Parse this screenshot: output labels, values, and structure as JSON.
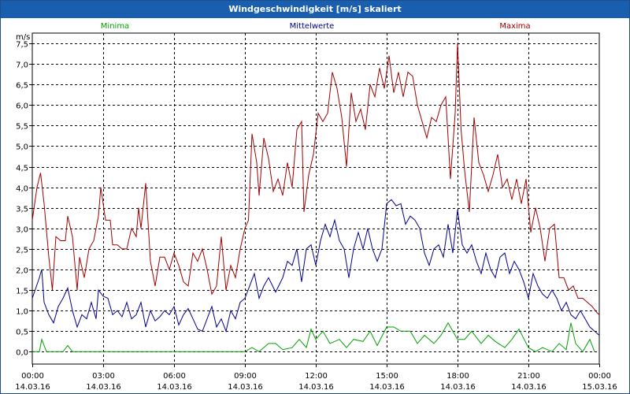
{
  "chart_data": {
    "type": "line",
    "title": "Windgeschwindigkeit [m/s] skaliert",
    "ylabel": "m/s",
    "ylim": [
      -0.3,
      7.75
    ],
    "y_ticks": [
      "0,0",
      "0,5",
      "1,0",
      "1,5",
      "2,0",
      "2,5",
      "3,0",
      "3,5",
      "4,0",
      "4,5",
      "5,0",
      "5,5",
      "6,0",
      "6,5",
      "7,0",
      "7,5"
    ],
    "y_tick_values": [
      0,
      0.5,
      1,
      1.5,
      2,
      2.5,
      3,
      3.5,
      4,
      4.5,
      5,
      5.5,
      6,
      6.5,
      7,
      7.5
    ],
    "x_range": [
      0,
      24
    ],
    "x_ticks": [
      {
        "time": "00:00",
        "date": "14.03.16",
        "hour": 0
      },
      {
        "time": "03:00",
        "date": "14.03.16",
        "hour": 3
      },
      {
        "time": "06:00",
        "date": "14.03.16",
        "hour": 6
      },
      {
        "time": "09:00",
        "date": "14.03.16",
        "hour": 9
      },
      {
        "time": "12:00",
        "date": "14.03.16",
        "hour": 12
      },
      {
        "time": "15:00",
        "date": "14.03.16",
        "hour": 15
      },
      {
        "time": "18:00",
        "date": "14.03.16",
        "hour": 18
      },
      {
        "time": "21:00",
        "date": "14.03.16",
        "hour": 21
      },
      {
        "time": "00:00",
        "date": "15.03.16",
        "hour": 24
      }
    ],
    "grid": true,
    "series": [
      {
        "name": "Minima",
        "color": "#00a000",
        "points": [
          [
            0,
            0
          ],
          [
            0.3,
            0
          ],
          [
            0.4,
            0.3
          ],
          [
            0.6,
            0
          ],
          [
            1.3,
            0
          ],
          [
            1.5,
            0.15
          ],
          [
            1.7,
            0
          ],
          [
            9.0,
            0
          ],
          [
            9.3,
            0.1
          ],
          [
            9.6,
            0
          ],
          [
            10.0,
            0.2
          ],
          [
            10.3,
            0.2
          ],
          [
            10.6,
            0.05
          ],
          [
            11.0,
            0.1
          ],
          [
            11.3,
            0.3
          ],
          [
            11.6,
            0.1
          ],
          [
            11.8,
            0.55
          ],
          [
            12.0,
            0.3
          ],
          [
            12.3,
            0.5
          ],
          [
            12.6,
            0.2
          ],
          [
            13.0,
            0.3
          ],
          [
            13.3,
            0.1
          ],
          [
            13.6,
            0.3
          ],
          [
            14.0,
            0.25
          ],
          [
            14.3,
            0.5
          ],
          [
            14.6,
            0.15
          ],
          [
            15.0,
            0.6
          ],
          [
            15.3,
            0.6
          ],
          [
            15.6,
            0.5
          ],
          [
            16.0,
            0.5
          ],
          [
            16.3,
            0.2
          ],
          [
            16.6,
            0.4
          ],
          [
            17.0,
            0.2
          ],
          [
            17.3,
            0.4
          ],
          [
            17.6,
            0.7
          ],
          [
            18.0,
            0.3
          ],
          [
            18.3,
            0.3
          ],
          [
            18.6,
            0.5
          ],
          [
            19.0,
            0.2
          ],
          [
            19.3,
            0.4
          ],
          [
            19.6,
            0.25
          ],
          [
            20.0,
            0.1
          ],
          [
            20.3,
            0.3
          ],
          [
            20.6,
            0.55
          ],
          [
            21.0,
            0.1
          ],
          [
            21.3,
            0
          ],
          [
            21.6,
            0.1
          ],
          [
            22.0,
            0
          ],
          [
            22.3,
            0.2
          ],
          [
            22.6,
            0.05
          ],
          [
            22.8,
            0.7
          ],
          [
            23.0,
            0.2
          ],
          [
            23.3,
            0
          ],
          [
            23.6,
            0.3
          ],
          [
            23.8,
            0
          ]
        ]
      },
      {
        "name": "Mittelwerte",
        "color": "#00008b",
        "points": [
          [
            0,
            1.3
          ],
          [
            0.3,
            1.8
          ],
          [
            0.4,
            2.0
          ],
          [
            0.5,
            1.2
          ],
          [
            0.7,
            0.9
          ],
          [
            0.9,
            0.7
          ],
          [
            1.1,
            1.1
          ],
          [
            1.3,
            1.3
          ],
          [
            1.5,
            1.55
          ],
          [
            1.7,
            1.0
          ],
          [
            1.9,
            0.6
          ],
          [
            2.1,
            0.9
          ],
          [
            2.3,
            0.8
          ],
          [
            2.5,
            1.2
          ],
          [
            2.7,
            0.8
          ],
          [
            2.8,
            1.5
          ],
          [
            3.0,
            1.35
          ],
          [
            3.2,
            1.3
          ],
          [
            3.4,
            0.9
          ],
          [
            3.6,
            1.0
          ],
          [
            3.8,
            0.85
          ],
          [
            4.0,
            1.2
          ],
          [
            4.2,
            0.8
          ],
          [
            4.4,
            0.9
          ],
          [
            4.6,
            1.2
          ],
          [
            4.8,
            0.6
          ],
          [
            5.0,
            1.0
          ],
          [
            5.2,
            0.75
          ],
          [
            5.4,
            0.85
          ],
          [
            5.6,
            1.0
          ],
          [
            5.8,
            0.9
          ],
          [
            6.0,
            1.1
          ],
          [
            6.2,
            0.65
          ],
          [
            6.4,
            0.9
          ],
          [
            6.6,
            1.05
          ],
          [
            6.8,
            0.8
          ],
          [
            7.0,
            0.55
          ],
          [
            7.2,
            0.5
          ],
          [
            7.4,
            0.8
          ],
          [
            7.6,
            1.1
          ],
          [
            7.8,
            0.6
          ],
          [
            8.0,
            0.8
          ],
          [
            8.2,
            0.5
          ],
          [
            8.4,
            1.0
          ],
          [
            8.6,
            0.8
          ],
          [
            8.8,
            1.2
          ],
          [
            9.0,
            1.3
          ],
          [
            9.2,
            1.6
          ],
          [
            9.4,
            1.9
          ],
          [
            9.6,
            1.3
          ],
          [
            9.8,
            1.6
          ],
          [
            10.0,
            1.8
          ],
          [
            10.3,
            1.45
          ],
          [
            10.6,
            1.8
          ],
          [
            10.8,
            2.2
          ],
          [
            11.0,
            2.1
          ],
          [
            11.2,
            2.5
          ],
          [
            11.4,
            1.7
          ],
          [
            11.6,
            2.5
          ],
          [
            11.8,
            2.6
          ],
          [
            12.0,
            2.1
          ],
          [
            12.2,
            2.7
          ],
          [
            12.4,
            3.1
          ],
          [
            12.6,
            2.8
          ],
          [
            12.8,
            3.2
          ],
          [
            13.0,
            2.7
          ],
          [
            13.2,
            2.5
          ],
          [
            13.4,
            1.8
          ],
          [
            13.6,
            2.5
          ],
          [
            13.8,
            2.9
          ],
          [
            14.0,
            2.5
          ],
          [
            14.2,
            3.0
          ],
          [
            14.4,
            2.5
          ],
          [
            14.6,
            2.2
          ],
          [
            14.8,
            2.5
          ],
          [
            15.0,
            3.6
          ],
          [
            15.2,
            3.7
          ],
          [
            15.4,
            3.55
          ],
          [
            15.6,
            3.6
          ],
          [
            15.8,
            3.1
          ],
          [
            16.0,
            3.3
          ],
          [
            16.2,
            3.2
          ],
          [
            16.4,
            3.0
          ],
          [
            16.6,
            2.4
          ],
          [
            16.8,
            2.1
          ],
          [
            17.0,
            2.5
          ],
          [
            17.2,
            2.6
          ],
          [
            17.4,
            2.3
          ],
          [
            17.6,
            3.1
          ],
          [
            17.8,
            2.4
          ],
          [
            18.0,
            3.45
          ],
          [
            18.2,
            2.6
          ],
          [
            18.4,
            2.4
          ],
          [
            18.6,
            2.6
          ],
          [
            18.8,
            2.2
          ],
          [
            19.0,
            1.9
          ],
          [
            19.2,
            2.4
          ],
          [
            19.4,
            2.0
          ],
          [
            19.6,
            1.8
          ],
          [
            19.8,
            2.3
          ],
          [
            20.0,
            2.4
          ],
          [
            20.2,
            1.9
          ],
          [
            20.4,
            2.2
          ],
          [
            20.6,
            2.0
          ],
          [
            20.8,
            1.7
          ],
          [
            21.0,
            1.3
          ],
          [
            21.2,
            1.9
          ],
          [
            21.4,
            1.6
          ],
          [
            21.6,
            1.4
          ],
          [
            21.8,
            1.3
          ],
          [
            22.0,
            1.5
          ],
          [
            22.2,
            1.3
          ],
          [
            22.4,
            1.0
          ],
          [
            22.6,
            1.2
          ],
          [
            22.8,
            0.9
          ],
          [
            23.0,
            0.8
          ],
          [
            23.2,
            1.0
          ],
          [
            23.4,
            0.8
          ],
          [
            23.6,
            0.6
          ],
          [
            23.8,
            0.5
          ],
          [
            24.0,
            0.4
          ]
        ]
      },
      {
        "name": "Maxima",
        "color": "#a00000",
        "points": [
          [
            0,
            3.2
          ],
          [
            0.2,
            4.0
          ],
          [
            0.35,
            4.35
          ],
          [
            0.5,
            3.6
          ],
          [
            0.7,
            2.3
          ],
          [
            0.85,
            1.5
          ],
          [
            1.0,
            2.8
          ],
          [
            1.2,
            2.7
          ],
          [
            1.4,
            2.7
          ],
          [
            1.5,
            3.3
          ],
          [
            1.7,
            2.8
          ],
          [
            1.9,
            1.5
          ],
          [
            2.0,
            2.3
          ],
          [
            2.2,
            1.8
          ],
          [
            2.4,
            2.5
          ],
          [
            2.6,
            2.7
          ],
          [
            2.8,
            3.3
          ],
          [
            2.9,
            4.0
          ],
          [
            3.1,
            3.2
          ],
          [
            3.3,
            3.2
          ],
          [
            3.4,
            2.6
          ],
          [
            3.6,
            2.6
          ],
          [
            3.8,
            2.5
          ],
          [
            4.0,
            2.5
          ],
          [
            4.2,
            3.0
          ],
          [
            4.4,
            2.8
          ],
          [
            4.5,
            3.5
          ],
          [
            4.6,
            3.0
          ],
          [
            4.8,
            4.1
          ],
          [
            5.0,
            2.2
          ],
          [
            5.2,
            1.6
          ],
          [
            5.4,
            2.3
          ],
          [
            5.6,
            2.3
          ],
          [
            5.8,
            2.0
          ],
          [
            6.0,
            2.4
          ],
          [
            6.2,
            2.1
          ],
          [
            6.4,
            1.7
          ],
          [
            6.6,
            1.6
          ],
          [
            6.8,
            2.4
          ],
          [
            7.0,
            2.2
          ],
          [
            7.2,
            2.5
          ],
          [
            7.4,
            2.0
          ],
          [
            7.6,
            1.4
          ],
          [
            7.8,
            1.6
          ],
          [
            8.0,
            2.8
          ],
          [
            8.2,
            1.5
          ],
          [
            8.4,
            2.1
          ],
          [
            8.6,
            1.8
          ],
          [
            8.8,
            2.5
          ],
          [
            9.0,
            3.0
          ],
          [
            9.15,
            3.2
          ],
          [
            9.3,
            5.3
          ],
          [
            9.5,
            4.6
          ],
          [
            9.6,
            3.8
          ],
          [
            9.8,
            5.2
          ],
          [
            10.0,
            4.7
          ],
          [
            10.2,
            3.9
          ],
          [
            10.4,
            4.2
          ],
          [
            10.6,
            3.8
          ],
          [
            10.8,
            4.6
          ],
          [
            11.0,
            4.0
          ],
          [
            11.2,
            5.4
          ],
          [
            11.4,
            5.6
          ],
          [
            11.5,
            3.4
          ],
          [
            11.7,
            4.3
          ],
          [
            11.9,
            4.8
          ],
          [
            12.1,
            5.8
          ],
          [
            12.3,
            5.6
          ],
          [
            12.5,
            5.8
          ],
          [
            12.7,
            6.8
          ],
          [
            12.9,
            6.4
          ],
          [
            13.1,
            5.7
          ],
          [
            13.3,
            4.5
          ],
          [
            13.5,
            6.3
          ],
          [
            13.7,
            5.6
          ],
          [
            13.9,
            5.9
          ],
          [
            14.1,
            5.4
          ],
          [
            14.3,
            6.5
          ],
          [
            14.5,
            6.2
          ],
          [
            14.7,
            6.9
          ],
          [
            14.9,
            6.4
          ],
          [
            15.0,
            6.8
          ],
          [
            15.1,
            7.2
          ],
          [
            15.3,
            6.3
          ],
          [
            15.5,
            6.8
          ],
          [
            15.7,
            6.2
          ],
          [
            15.9,
            6.8
          ],
          [
            16.1,
            6.7
          ],
          [
            16.3,
            6.0
          ],
          [
            16.5,
            5.6
          ],
          [
            16.7,
            5.2
          ],
          [
            16.9,
            5.7
          ],
          [
            17.1,
            5.6
          ],
          [
            17.3,
            6.0
          ],
          [
            17.5,
            6.2
          ],
          [
            17.7,
            4.2
          ],
          [
            17.9,
            5.8
          ],
          [
            18.0,
            7.5
          ],
          [
            18.15,
            5.4
          ],
          [
            18.3,
            4.4
          ],
          [
            18.5,
            3.4
          ],
          [
            18.7,
            5.7
          ],
          [
            18.9,
            4.6
          ],
          [
            19.1,
            4.3
          ],
          [
            19.3,
            3.9
          ],
          [
            19.5,
            4.3
          ],
          [
            19.7,
            4.8
          ],
          [
            19.9,
            4.0
          ],
          [
            20.1,
            4.2
          ],
          [
            20.3,
            3.7
          ],
          [
            20.5,
            4.2
          ],
          [
            20.7,
            3.6
          ],
          [
            20.9,
            4.2
          ],
          [
            21.1,
            2.9
          ],
          [
            21.3,
            3.5
          ],
          [
            21.5,
            3.0
          ],
          [
            21.7,
            2.2
          ],
          [
            21.9,
            3.0
          ],
          [
            22.1,
            3.1
          ],
          [
            22.3,
            1.8
          ],
          [
            22.5,
            1.8
          ],
          [
            22.7,
            1.5
          ],
          [
            22.9,
            1.6
          ],
          [
            23.1,
            1.3
          ],
          [
            23.3,
            1.3
          ],
          [
            23.5,
            1.2
          ],
          [
            23.7,
            1.1
          ],
          [
            23.9,
            0.95
          ],
          [
            24.0,
            0.9
          ]
        ]
      }
    ]
  }
}
